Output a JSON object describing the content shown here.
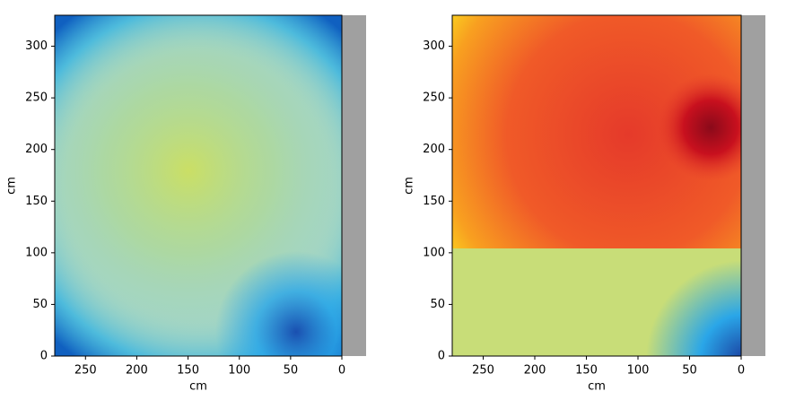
{
  "chart_data": [
    {
      "type": "heatmap",
      "xlabel": "cm",
      "ylabel": "cm",
      "xlim": [
        280,
        0
      ],
      "ylim": [
        0,
        330
      ],
      "xticks": [
        250,
        200,
        150,
        100,
        50,
        0
      ],
      "yticks": [
        0,
        50,
        100,
        150,
        200,
        250,
        300
      ]
    },
    {
      "type": "heatmap",
      "xlabel": "cm",
      "ylabel": "cm",
      "xlim": [
        280,
        0
      ],
      "ylim": [
        0,
        330
      ],
      "xticks": [
        250,
        200,
        150,
        100,
        50,
        0
      ],
      "yticks": [
        0,
        50,
        100,
        150,
        200,
        250,
        300
      ]
    }
  ]
}
